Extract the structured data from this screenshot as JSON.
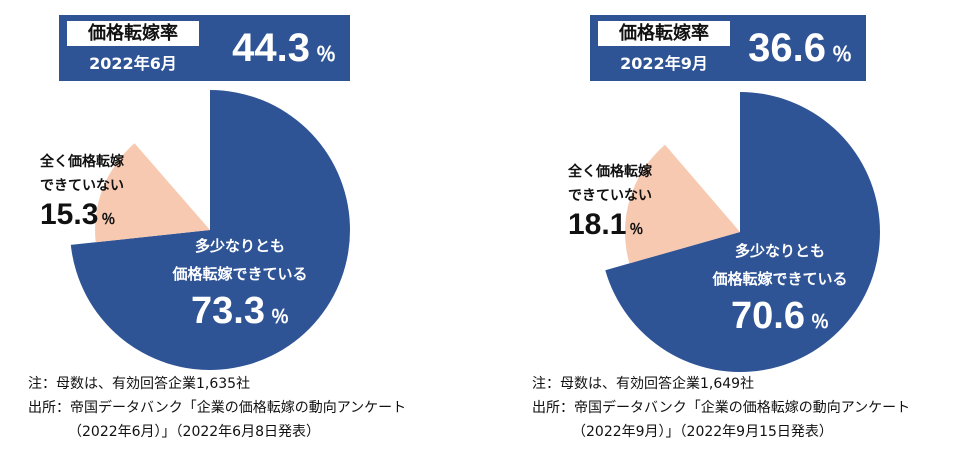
{
  "colors": {
    "main": "#2f5496",
    "minor": "#f7c9b0",
    "header_bg": "#2f5496"
  },
  "panels": [
    {
      "header": {
        "label": "価格転嫁率",
        "date": "2022年6月",
        "rate": "44.3",
        "rate_unit": "％"
      },
      "chart_data": {
        "type": "pie",
        "slices": [
          {
            "label": "多少なりとも価格転嫁できている",
            "value": 73.3
          },
          {
            "label": "全く価格転嫁できていない",
            "value": 15.3
          }
        ],
        "unit": "%"
      },
      "labels": {
        "major": {
          "line1": "多少なりとも",
          "line2": "価格転嫁できている",
          "value": "73.3",
          "unit": "％"
        },
        "minor": {
          "line1": "全く価格転嫁",
          "line2": "できていない",
          "value": "15.3",
          "unit": "％"
        }
      },
      "note": {
        "line1": "注：母数は、有効回答企業1,635社",
        "line2": "出所：帝国データバンク「企業の価格転嫁の動向アンケート",
        "line3": "（2022年6月）」（2022年6月8日発表）"
      }
    },
    {
      "header": {
        "label": "価格転嫁率",
        "date": "2022年9月",
        "rate": "36.6",
        "rate_unit": "％"
      },
      "chart_data": {
        "type": "pie",
        "slices": [
          {
            "label": "多少なりとも価格転嫁できている",
            "value": 70.6
          },
          {
            "label": "全く価格転嫁できていない",
            "value": 18.1
          }
        ],
        "unit": "%"
      },
      "labels": {
        "major": {
          "line1": "多少なりとも",
          "line2": "価格転嫁できている",
          "value": "70.6",
          "unit": "％"
        },
        "minor": {
          "line1": "全く価格転嫁",
          "line2": "できていない",
          "value": "18.1",
          "unit": "％"
        }
      },
      "note": {
        "line1": "注：母数は、有効回答企業1,649社",
        "line2": "出所：帝国データバンク「企業の価格転嫁の動向アンケート",
        "line3": "（2022年9月）」（2022年9月15日発表）"
      }
    }
  ]
}
